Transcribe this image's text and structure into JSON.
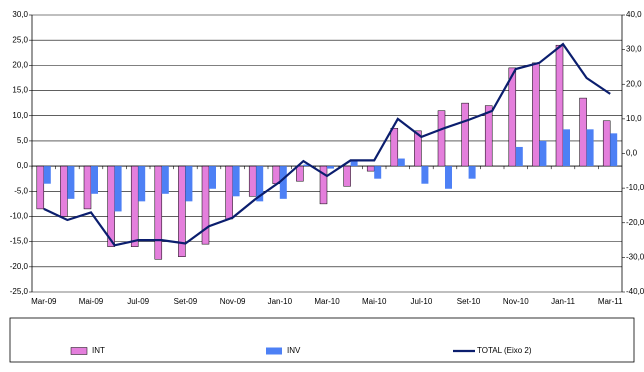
{
  "chart_data": {
    "type": "bar",
    "categories": [
      "Mar-09",
      null,
      "Mai-09",
      null,
      "Jul-09",
      null,
      "Set-09",
      null,
      "Nov-09",
      null,
      "Jan-10",
      null,
      "Mar-10",
      null,
      "Mai-10",
      null,
      "Jul-10",
      null,
      "Set-10",
      null,
      "Nov-10",
      null,
      "Jan-11",
      null,
      "Mar-11"
    ],
    "series": [
      {
        "name": "INT",
        "type": "bar",
        "color": "#e47fdc",
        "values": [
          -8.5,
          -10,
          -8.5,
          -16,
          -16,
          -18.5,
          -18,
          -15.5,
          -10.5,
          -6,
          -3.5,
          -3,
          -7.5,
          -4,
          -1,
          7.5,
          7,
          11,
          12.5,
          12,
          19.5,
          20.5,
          24,
          13.5,
          9
        ]
      },
      {
        "name": "INV",
        "type": "bar",
        "color": "#4d80f5",
        "values": [
          -3.5,
          -6.5,
          -5.5,
          -9,
          -7,
          -5.5,
          -7,
          -4.5,
          -6,
          -7,
          -6.5,
          0.3,
          -0.5,
          1.2,
          -2.5,
          1.5,
          -3.5,
          -4.5,
          -2.5,
          0,
          3.8,
          5,
          7.3,
          7.3,
          6.5
        ]
      },
      {
        "name": "TOTAL (Eixo 2)",
        "type": "line",
        "axis": "y2",
        "color": "#0b1e6e",
        "values": [
          -16,
          -19.2,
          -17,
          -26.5,
          -25,
          -25,
          -26,
          -21,
          -18.5,
          -13,
          -8.2,
          -2.2,
          -6.5,
          -2,
          -2,
          10,
          4.8,
          7.4,
          9.7,
          12.3,
          24.4,
          26.2,
          31.6,
          21.8,
          17.2
        ]
      }
    ],
    "ylim": [
      -25,
      30
    ],
    "yticks": [
      {
        "value": 30,
        "label": "30,0"
      },
      {
        "value": 25,
        "label": "25,0"
      },
      {
        "value": 20,
        "label": "20,0"
      },
      {
        "value": 15,
        "label": "15,0"
      },
      {
        "value": 10,
        "label": "10,0"
      },
      {
        "value": 5,
        "label": "5,0"
      },
      {
        "value": 0,
        "label": "0,0"
      },
      {
        "value": -5,
        "label": "-5,0"
      },
      {
        "value": -10,
        "label": "-10,0"
      },
      {
        "value": -15,
        "label": "-15,0"
      },
      {
        "value": -20,
        "label": "-20,0"
      },
      {
        "value": -25,
        "label": "-25,0"
      }
    ],
    "y2lim": [
      -40,
      40
    ],
    "y2ticks": [
      {
        "value": 40,
        "label": "40,0"
      },
      {
        "value": 30,
        "label": "30,0"
      },
      {
        "value": 20,
        "label": "20,0"
      },
      {
        "value": 10,
        "label": "10,0"
      },
      {
        "value": 0,
        "label": "0,0"
      },
      {
        "value": -10,
        "label": "-10,0"
      },
      {
        "value": -20,
        "label": "-20,0"
      },
      {
        "value": -30,
        "label": "-30,0"
      },
      {
        "value": -40,
        "label": "-40,0"
      }
    ],
    "grid": true,
    "legend": "bottom"
  }
}
